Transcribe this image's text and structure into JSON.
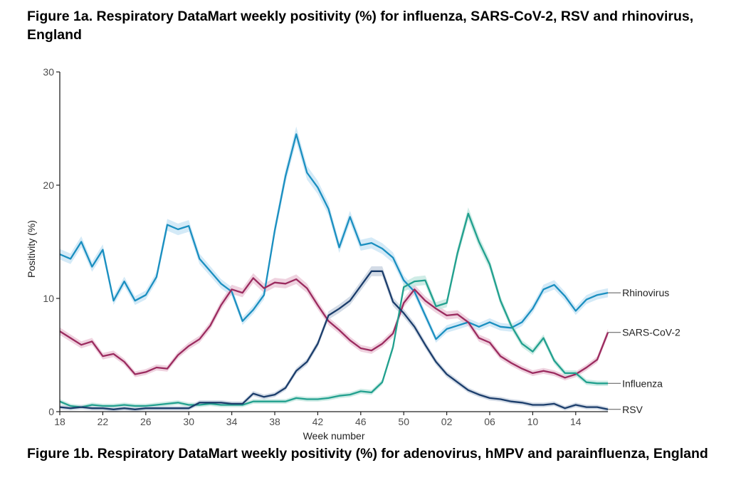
{
  "figure_1a": {
    "title": "Figure 1a. Respiratory DataMart weekly positivity (%) for influenza, SARS-CoV-2, RSV and rhinovirus, England"
  },
  "figure_1b": {
    "title": "Figure 1b. Respiratory DataMart weekly positivity (%) for adenovirus, hMPV and parainfluenza, England"
  },
  "chart_data": {
    "type": "line",
    "xlabel": "Week number",
    "ylabel": "Positivity (%)",
    "ylim": [
      0,
      30
    ],
    "yticks": [
      0,
      10,
      20,
      30
    ],
    "x": [
      "18",
      "19",
      "20",
      "21",
      "22",
      "23",
      "24",
      "25",
      "26",
      "27",
      "28",
      "29",
      "30",
      "31",
      "32",
      "33",
      "34",
      "35",
      "36",
      "37",
      "38",
      "39",
      "40",
      "41",
      "42",
      "43",
      "44",
      "45",
      "46",
      "47",
      "48",
      "49",
      "50",
      "51",
      "52",
      "01",
      "02",
      "03",
      "04",
      "05",
      "06",
      "07",
      "08",
      "09",
      "10",
      "11",
      "12",
      "13",
      "14",
      "15",
      "16",
      "17"
    ],
    "xtick_labels": [
      "18",
      "22",
      "26",
      "30",
      "34",
      "38",
      "42",
      "46",
      "50",
      "02",
      "06",
      "10",
      "14"
    ],
    "legend_position": "direct labels at right end of lines",
    "confidence_band": true,
    "grid": false,
    "series": [
      {
        "name": "Rhinovirus",
        "color": "#1a8fc0",
        "band_color": "#c6e3f4",
        "values": [
          13.9,
          13.5,
          15.0,
          12.8,
          14.3,
          9.8,
          11.5,
          9.8,
          10.3,
          11.9,
          16.5,
          16.1,
          16.4,
          13.5,
          12.4,
          11.3,
          10.6,
          8.0,
          9.0,
          10.3,
          16.0,
          20.8,
          24.5,
          21.1,
          19.8,
          17.9,
          14.5,
          17.2,
          14.7,
          14.9,
          14.4,
          13.6,
          11.6,
          10.6,
          8.5,
          6.4,
          7.3,
          7.6,
          7.9,
          7.5,
          7.9,
          7.5,
          7.4,
          7.9,
          9.1,
          10.8,
          11.2,
          10.2,
          8.9,
          9.9,
          10.3,
          10.5
        ]
      },
      {
        "name": "SARS-CoV-2",
        "color": "#9b2b5f",
        "band_color": "#e9c3d4",
        "values": [
          7.1,
          6.5,
          5.9,
          6.2,
          4.9,
          5.1,
          4.4,
          3.3,
          3.5,
          3.9,
          3.8,
          5.0,
          5.8,
          6.4,
          7.6,
          9.4,
          10.8,
          10.5,
          11.8,
          10.9,
          11.4,
          11.3,
          11.7,
          10.9,
          9.4,
          8.0,
          7.2,
          6.3,
          5.6,
          5.4,
          6.0,
          6.9,
          9.6,
          10.8,
          9.8,
          9.1,
          8.5,
          8.6,
          7.9,
          6.5,
          6.1,
          4.9,
          4.3,
          3.8,
          3.4,
          3.6,
          3.4,
          3.0,
          3.3,
          3.9,
          4.6,
          7.0
        ]
      },
      {
        "name": "Influenza",
        "color": "#21a08e",
        "band_color": "#bfe6de",
        "values": [
          0.9,
          0.5,
          0.4,
          0.6,
          0.5,
          0.5,
          0.6,
          0.5,
          0.5,
          0.6,
          0.7,
          0.8,
          0.6,
          0.6,
          0.7,
          0.6,
          0.6,
          0.6,
          0.9,
          0.9,
          0.9,
          0.9,
          1.2,
          1.1,
          1.1,
          1.2,
          1.4,
          1.5,
          1.8,
          1.7,
          2.6,
          5.7,
          11.0,
          11.5,
          11.6,
          9.3,
          9.6,
          14.0,
          17.5,
          15.0,
          13.0,
          9.8,
          7.6,
          6.0,
          5.3,
          6.5,
          4.5,
          3.4,
          3.4,
          2.6,
          2.5,
          2.5
        ]
      },
      {
        "name": "RSV",
        "color": "#1b3d6b",
        "band_color": "#c4cfdd",
        "values": [
          0.4,
          0.3,
          0.4,
          0.3,
          0.3,
          0.2,
          0.3,
          0.2,
          0.3,
          0.3,
          0.3,
          0.3,
          0.3,
          0.8,
          0.8,
          0.8,
          0.7,
          0.7,
          1.6,
          1.3,
          1.5,
          2.1,
          3.6,
          4.4,
          6.0,
          8.5,
          9.1,
          9.8,
          11.1,
          12.4,
          12.4,
          9.7,
          8.7,
          7.5,
          5.9,
          4.4,
          3.3,
          2.6,
          1.9,
          1.5,
          1.2,
          1.1,
          0.9,
          0.8,
          0.6,
          0.6,
          0.7,
          0.3,
          0.6,
          0.4,
          0.4,
          0.2
        ]
      }
    ]
  }
}
